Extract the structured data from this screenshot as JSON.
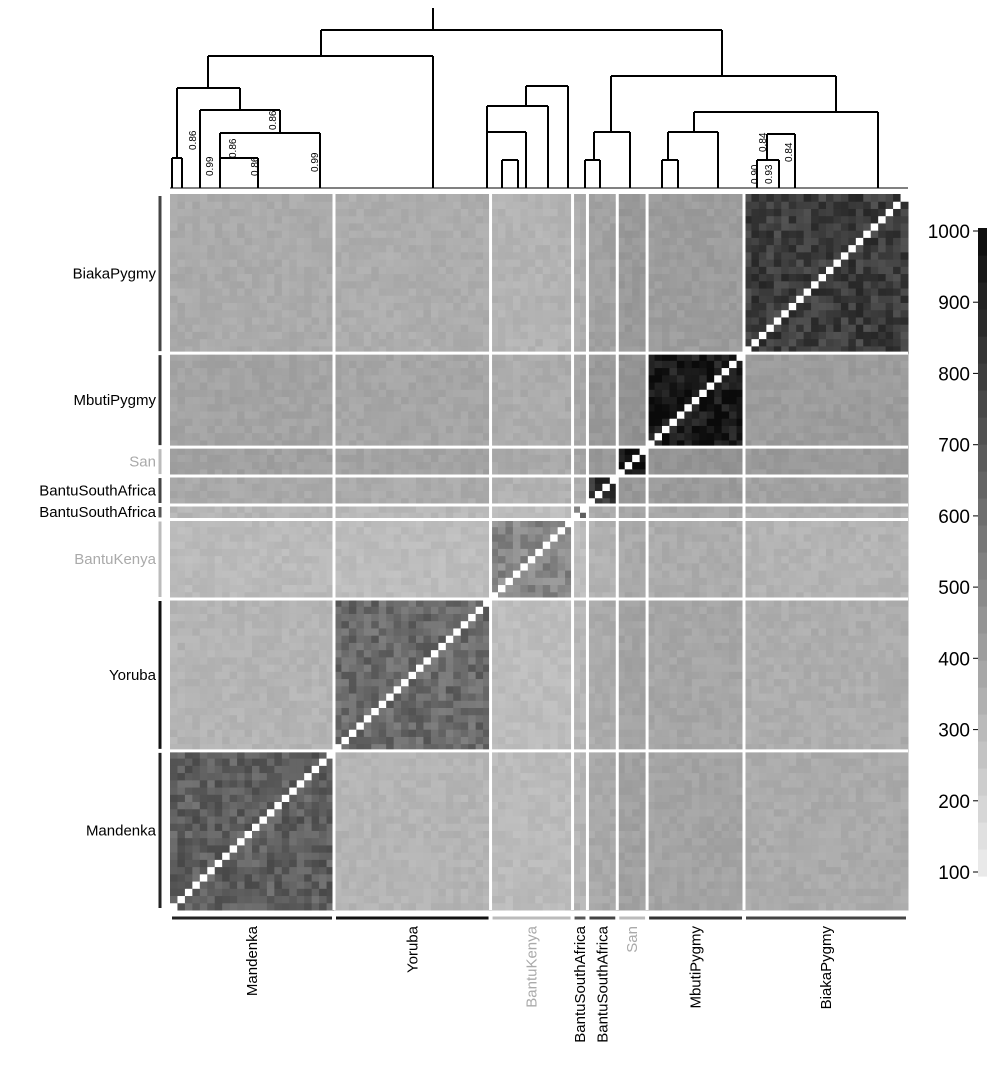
{
  "chart_data": {
    "type": "heatmap",
    "title": "",
    "xlabel": "",
    "ylabel": "",
    "groups": [
      {
        "label": "Mandenka",
        "size": 22,
        "level": 0.63,
        "label_color": "#000000",
        "bar_color": "#222222"
      },
      {
        "label": "Yoruba",
        "size": 21,
        "level": 0.58,
        "label_color": "#000000",
        "bar_color": "#111111"
      },
      {
        "label": "BantuKenya",
        "size": 11,
        "level": 0.45,
        "label_color": "#aaaaaa",
        "bar_color": "#bbbbbb"
      },
      {
        "label": "BantuSouthAfrica",
        "size": 2,
        "level": 0.55,
        "label_color": "#000000",
        "bar_color": "#555555"
      },
      {
        "label": "BantuSouthAfrica",
        "size": 4,
        "level": 0.82,
        "label_color": "#000000",
        "bar_color": "#444444"
      },
      {
        "label": "San",
        "size": 4,
        "level": 0.98,
        "label_color": "#aaaaaa",
        "bar_color": "#bbbbbb"
      },
      {
        "label": "MbutiPygmy",
        "size": 13,
        "level": 0.93,
        "label_color": "#000000",
        "bar_color": "#333333"
      },
      {
        "label": "BiakaPygmy",
        "size": 22,
        "level": 0.78,
        "label_color": "#000000",
        "bar_color": "#444444"
      }
    ],
    "legend": {
      "position": "right",
      "ticks": [
        100,
        200,
        300,
        400,
        500,
        600,
        700,
        800,
        900,
        1000
      ],
      "min": 50,
      "max": 1000,
      "palette": "white-to-black"
    },
    "dendrogram_labels": [
      "0.86",
      "0.99",
      "0.86",
      "0.86",
      "0.86",
      "0.99",
      "0.90",
      "0.93",
      "0.84",
      "0.84"
    ]
  }
}
